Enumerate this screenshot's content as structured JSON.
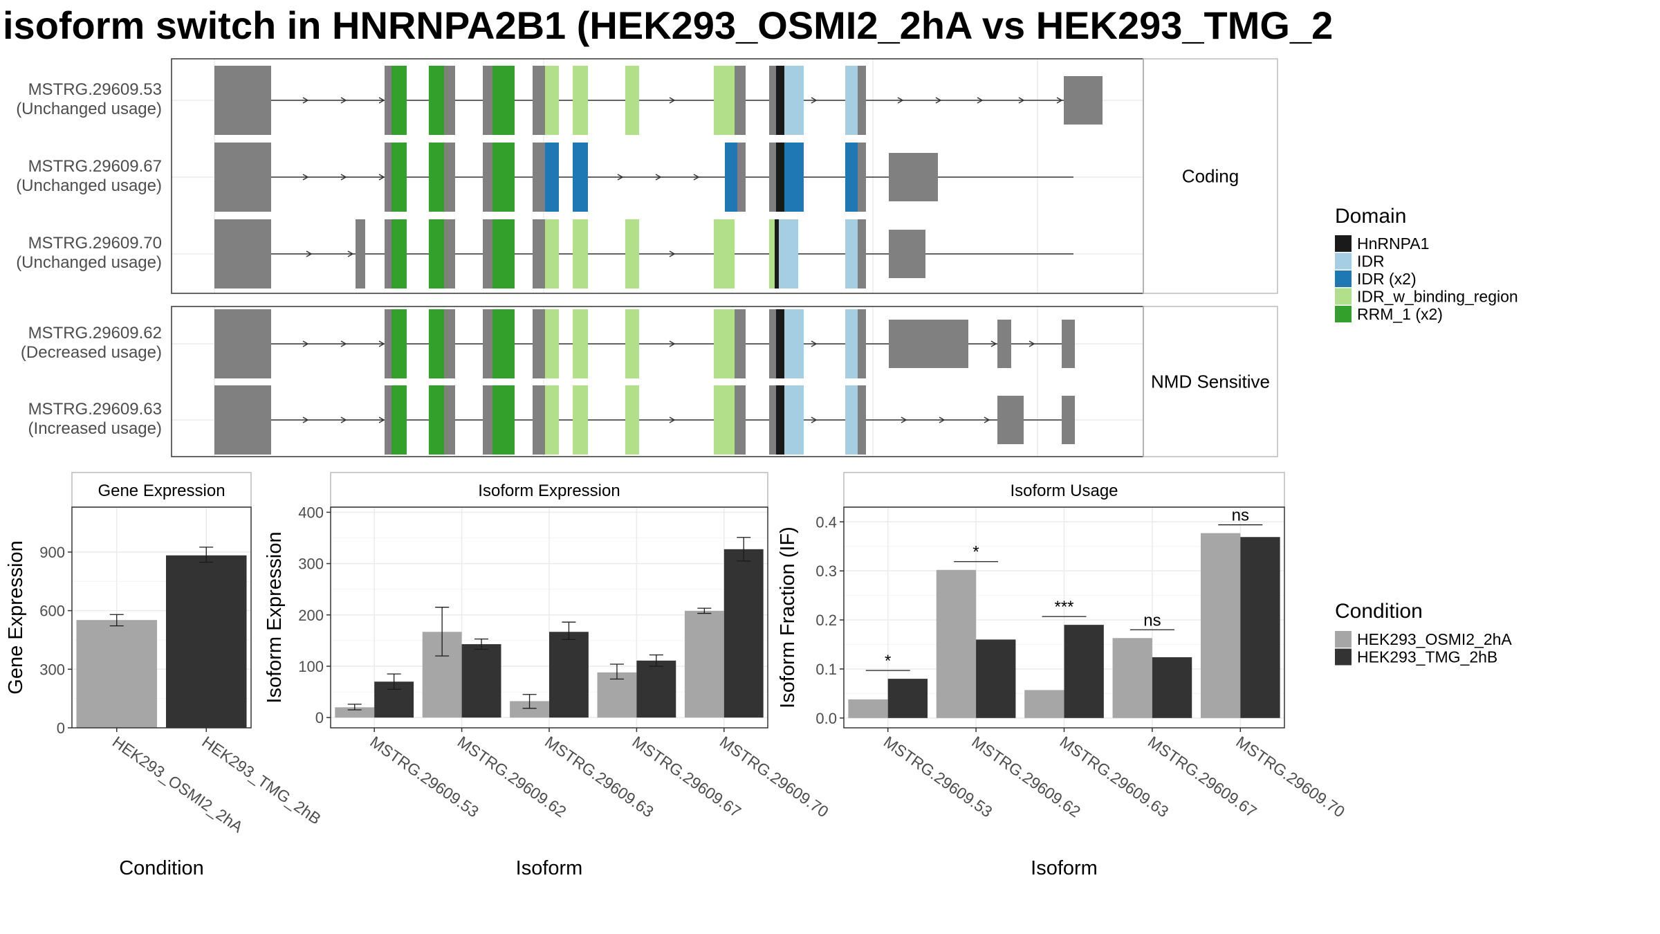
{
  "title": "isoform switch in HNRNPA2B1 (HEK293_OSMI2_2hA vs HEK293_TMG_2",
  "colors": {
    "panel_border": "#333333",
    "strip_border": "#bbbbbb",
    "grid": "#ebebeb",
    "exon": "#808080",
    "intron": "#333333",
    "condition_a": "#a6a6a6",
    "condition_b": "#333333",
    "text": "#000000",
    "axis_text": "#4d4d4d"
  },
  "domain_legend": {
    "title": "Domain",
    "items": [
      {
        "label": "HnRNPA1",
        "color": "#1a1a1a"
      },
      {
        "label": "IDR",
        "color": "#a6cee3"
      },
      {
        "label": "IDR (x2)",
        "color": "#1f78b4"
      },
      {
        "label": "IDR_w_binding_region",
        "color": "#b2df8a"
      },
      {
        "label": "RRM_1 (x2)",
        "color": "#33a02c"
      }
    ]
  },
  "condition_legend": {
    "title": "Condition",
    "items": [
      {
        "label": "HEK293_OSMI2_2hA",
        "color": "#a6a6a6"
      },
      {
        "label": "HEK293_TMG_2hB",
        "color": "#333333"
      }
    ]
  },
  "structure": {
    "groups": [
      {
        "strip": "Coding",
        "isoforms": [
          {
            "id": "MSTRG.29609.53",
            "usage": "(Unchanged usage)"
          },
          {
            "id": "MSTRG.29609.67",
            "usage": "(Unchanged usage)"
          },
          {
            "id": "MSTRG.29609.70",
            "usage": "(Unchanged usage)"
          }
        ]
      },
      {
        "strip": "NMD Sensitive",
        "isoforms": [
          {
            "id": "MSTRG.29609.62",
            "usage": "(Decreased usage)"
          },
          {
            "id": "MSTRG.29609.63",
            "usage": "(Increased usage)"
          }
        ]
      }
    ]
  },
  "chart_data": [
    {
      "type": "bar",
      "strip": "Gene Expression",
      "xlabel": "Condition",
      "ylabel": "Gene Expression",
      "categories": [
        "HEK293_OSMI2_2hA",
        "HEK293_TMG_2hB"
      ],
      "yticks": [
        "0",
        "300",
        "600",
        "900"
      ],
      "ylim": [
        0,
        1130
      ],
      "series": [
        {
          "values": [
            552,
            883
          ],
          "err_low": [
            522,
            848
          ],
          "err_high": [
            580,
            925
          ]
        }
      ]
    },
    {
      "type": "bar",
      "strip": "Isoform Expression",
      "xlabel": "Isoform",
      "ylabel": "Isoform Expression",
      "categories": [
        "MSTRG.29609.53",
        "MSTRG.29609.62",
        "MSTRG.29609.63",
        "MSTRG.29609.67",
        "MSTRG.29609.70"
      ],
      "yticks": [
        "0",
        "100",
        "200",
        "300",
        "400"
      ],
      "ylim": [
        -20,
        410
      ],
      "series": [
        {
          "name": "HEK293_OSMI2_2hA",
          "values": [
            20,
            167,
            32,
            88,
            208
          ],
          "err_low": [
            15,
            120,
            18,
            75,
            203
          ],
          "err_high": [
            26,
            215,
            45,
            104,
            213
          ]
        },
        {
          "name": "HEK293_TMG_2hB",
          "values": [
            70,
            143,
            167,
            111,
            328
          ],
          "err_low": [
            55,
            133,
            152,
            100,
            305
          ],
          "err_high": [
            85,
            153,
            186,
            122,
            351
          ]
        }
      ]
    },
    {
      "type": "bar",
      "strip": "Isoform Usage",
      "xlabel": "Isoform",
      "ylabel": "Isoform Fraction (IF)",
      "categories": [
        "MSTRG.29609.53",
        "MSTRG.29609.62",
        "MSTRG.29609.63",
        "MSTRG.29609.67",
        "MSTRG.29609.70"
      ],
      "yticks": [
        "0.0",
        "0.1",
        "0.2",
        "0.3",
        "0.4"
      ],
      "ylim": [
        -0.02,
        0.43
      ],
      "series": [
        {
          "name": "HEK293_OSMI2_2hA",
          "values": [
            0.038,
            0.302,
            0.057,
            0.163,
            0.377
          ]
        },
        {
          "name": "HEK293_TMG_2hB",
          "values": [
            0.08,
            0.16,
            0.19,
            0.124,
            0.369
          ]
        }
      ],
      "significance": [
        "*",
        "*",
        "***",
        "ns",
        "ns"
      ]
    }
  ]
}
